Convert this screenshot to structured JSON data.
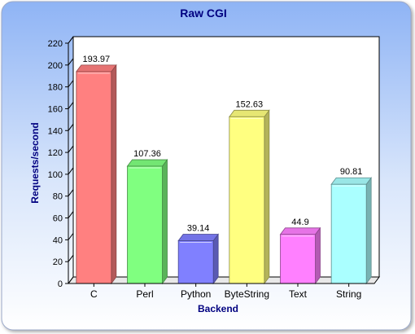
{
  "chart_data": {
    "type": "bar",
    "title": "Raw CGI",
    "xlabel": "Backend",
    "ylabel": "Requests/second",
    "categories": [
      "C",
      "Perl",
      "Python",
      "ByteString",
      "Text",
      "String"
    ],
    "values": [
      193.97,
      107.36,
      39.14,
      152.63,
      44.9,
      90.81
    ],
    "value_labels": [
      "193.97",
      "107.36",
      "39.14",
      "152.63",
      "44.9",
      "90.81"
    ],
    "yticks": [
      0,
      20,
      40,
      60,
      80,
      100,
      120,
      140,
      160,
      180,
      200,
      220
    ],
    "ylim": [
      0,
      220
    ],
    "grid": false,
    "legend": "none",
    "bar_colors": [
      "#ff8080",
      "#80ff80",
      "#8080ff",
      "#ffff80",
      "#ff80ff",
      "#aaffff"
    ],
    "style": {
      "background_top": "#8fb4f5",
      "background_bottom": "#ffffff",
      "plot_face": "#ffffff",
      "title_color": "#000080",
      "axis_label_color": "#000080"
    }
  }
}
